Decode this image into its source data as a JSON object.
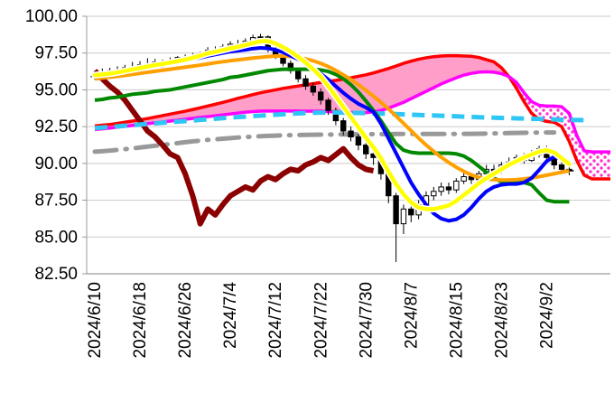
{
  "page": {
    "background": "#FFFFFF"
  },
  "chart_data": {
    "type": "candlestick",
    "subtype": "ichimoku-with-moving-averages",
    "title": "",
    "ylim": [
      82.5,
      100.0
    ],
    "y_tick_step": 2.5,
    "y_tick_labels": [
      "100.00",
      "97.50",
      "95.00",
      "92.50",
      "90.00",
      "87.50",
      "85.00",
      "82.50"
    ],
    "x_tick_labels": [
      "2024/6/10",
      "2024/6/18",
      "2024/6/26",
      "2024/7/4",
      "2024/7/12",
      "2024/7/22",
      "2024/7/30",
      "2024/8/7",
      "2024/8/15",
      "2024/8/23",
      "2024/9/2"
    ],
    "x_tick_bar_indices": [
      0,
      6,
      12,
      18,
      24,
      30,
      36,
      42,
      48,
      54,
      60
    ],
    "grid": true,
    "grid_color": "#C9C9C9",
    "axis_color": "#9A9A9A",
    "label_color": "#000000",
    "dates": [
      "2024/6/10",
      "2024/6/11",
      "2024/6/12",
      "2024/6/13",
      "2024/6/14",
      "2024/6/17",
      "2024/6/18",
      "2024/6/19",
      "2024/6/20",
      "2024/6/21",
      "2024/6/24",
      "2024/6/25",
      "2024/6/26",
      "2024/6/27",
      "2024/6/28",
      "2024/7/1",
      "2024/7/2",
      "2024/7/3",
      "2024/7/4",
      "2024/7/5",
      "2024/7/8",
      "2024/7/9",
      "2024/7/10",
      "2024/7/11",
      "2024/7/12",
      "2024/7/15",
      "2024/7/16",
      "2024/7/17",
      "2024/7/18",
      "2024/7/19",
      "2024/7/22",
      "2024/7/23",
      "2024/7/24",
      "2024/7/25",
      "2024/7/26",
      "2024/7/29",
      "2024/7/30",
      "2024/7/31",
      "2024/8/1",
      "2024/8/2",
      "2024/8/5",
      "2024/8/6",
      "2024/8/7",
      "2024/8/8",
      "2024/8/9",
      "2024/8/12",
      "2024/8/13",
      "2024/8/14",
      "2024/8/15",
      "2024/8/16",
      "2024/8/19",
      "2024/8/20",
      "2024/8/21",
      "2024/8/22",
      "2024/8/23",
      "2024/8/26",
      "2024/8/27",
      "2024/8/28",
      "2024/8/29",
      "2024/8/30",
      "2024/9/2",
      "2024/9/3",
      "2024/9/4",
      "2024/9/5"
    ],
    "candles": {
      "up_fill": "#FFFFFF",
      "down_fill": "#000000",
      "border": "#000000",
      "open": [
        95.9,
        96.1,
        95.95,
        96.3,
        96.15,
        96.5,
        96.4,
        96.7,
        96.6,
        96.9,
        96.8,
        97.0,
        97.2,
        97.1,
        97.3,
        97.5,
        97.7,
        97.6,
        97.9,
        98.1,
        98.0,
        98.3,
        98.55,
        98.6,
        97.75,
        97.3,
        96.8,
        96.3,
        95.75,
        95.25,
        94.85,
        94.3,
        93.6,
        92.9,
        92.2,
        91.8,
        91.25,
        90.65,
        90.4,
        89.3,
        87.8,
        85.9,
        86.9,
        86.5,
        87.2,
        87.8,
        88.1,
        88.4,
        88.2,
        88.8,
        89.1,
        88.9,
        89.3,
        89.6,
        89.5,
        89.9,
        90.1,
        90.4,
        90.2,
        90.6,
        91.0,
        90.4,
        89.9,
        89.6
      ],
      "high": [
        96.3,
        96.45,
        96.5,
        96.6,
        96.7,
        96.9,
        96.95,
        97.15,
        97.1,
        97.05,
        97.2,
        97.3,
        97.4,
        97.5,
        97.6,
        97.9,
        97.95,
        98.1,
        98.3,
        98.4,
        98.5,
        98.75,
        98.8,
        98.7,
        98.0,
        97.5,
        97.0,
        96.5,
        96.0,
        95.5,
        95.1,
        94.45,
        93.8,
        93.1,
        92.5,
        92.0,
        91.5,
        91.2,
        90.55,
        89.45,
        88.0,
        87.2,
        87.4,
        87.5,
        88.1,
        88.4,
        88.7,
        88.7,
        89.0,
        89.4,
        89.3,
        89.5,
        89.9,
        89.9,
        90.1,
        90.4,
        90.6,
        90.7,
        90.9,
        91.2,
        91.2,
        90.5,
        90.1,
        89.9
      ],
      "low": [
        95.7,
        95.85,
        95.8,
        96.0,
        96.05,
        96.2,
        96.3,
        96.4,
        96.45,
        96.5,
        96.65,
        96.8,
        96.9,
        97.0,
        97.1,
        97.3,
        97.45,
        97.5,
        97.7,
        97.85,
        97.9,
        98.1,
        98.3,
        97.55,
        97.1,
        96.6,
        96.1,
        95.5,
        95.0,
        94.6,
        94.0,
        93.3,
        92.6,
        91.9,
        91.5,
        90.9,
        90.3,
        89.9,
        88.9,
        87.3,
        83.3,
        85.2,
        86.0,
        86.2,
        86.9,
        87.5,
        87.8,
        87.9,
        88.0,
        88.6,
        88.6,
        88.7,
        89.1,
        89.2,
        89.3,
        89.7,
        89.9,
        90.0,
        90.1,
        90.4,
        90.2,
        89.6,
        89.3,
        89.2
      ],
      "close": [
        96.1,
        95.95,
        96.3,
        96.15,
        96.5,
        96.4,
        96.7,
        96.6,
        96.9,
        96.8,
        97.0,
        97.2,
        97.1,
        97.3,
        97.5,
        97.7,
        97.6,
        97.9,
        98.1,
        98.0,
        98.3,
        98.55,
        98.6,
        97.75,
        97.3,
        96.8,
        96.3,
        95.75,
        95.25,
        94.85,
        94.3,
        93.6,
        92.9,
        92.2,
        91.8,
        91.25,
        90.65,
        90.4,
        89.3,
        87.8,
        85.9,
        86.9,
        86.5,
        87.2,
        87.8,
        88.1,
        88.4,
        88.2,
        88.8,
        89.1,
        88.9,
        89.3,
        89.6,
        89.5,
        89.9,
        90.1,
        90.4,
        90.2,
        90.6,
        91.0,
        90.4,
        89.9,
        89.6,
        89.5
      ]
    },
    "overlays": [
      {
        "name": "fast-line-yellow",
        "color": "#FFFF00",
        "halo": "#FFFFFF",
        "width": 4.5,
        "style": "solid",
        "start_index": 0,
        "values": [
          96.0,
          96.05,
          96.1,
          96.18,
          96.28,
          96.38,
          96.48,
          96.58,
          96.68,
          96.76,
          96.85,
          96.95,
          97.05,
          97.18,
          97.32,
          97.48,
          97.58,
          97.7,
          97.82,
          97.92,
          98.05,
          98.18,
          98.3,
          98.32,
          98.15,
          97.9,
          97.6,
          97.25,
          96.85,
          96.4,
          95.9,
          95.25,
          94.55,
          93.85,
          93.15,
          92.45,
          91.75,
          91.1,
          90.35,
          89.45,
          88.6,
          87.9,
          87.35,
          87.0,
          86.9,
          86.9,
          87.0,
          87.15,
          87.45,
          87.85,
          88.25,
          88.65,
          89.0,
          89.3,
          89.6,
          89.9,
          90.15,
          90.4,
          90.6,
          90.8,
          90.9,
          90.75,
          90.35,
          89.95
        ]
      },
      {
        "name": "ma-blue",
        "color": "#0000FF",
        "width": 4,
        "style": "solid",
        "start_index": 0,
        "values": [
          95.9,
          95.95,
          96.0,
          96.08,
          96.18,
          96.28,
          96.38,
          96.48,
          96.58,
          96.68,
          96.78,
          96.88,
          96.98,
          97.08,
          97.18,
          97.3,
          97.4,
          97.5,
          97.6,
          97.66,
          97.72,
          97.8,
          97.85,
          97.82,
          97.72,
          97.55,
          97.32,
          97.08,
          96.8,
          96.48,
          96.1,
          95.7,
          95.25,
          94.8,
          94.4,
          94.05,
          93.8,
          93.5,
          92.7,
          91.7,
          90.7,
          89.7,
          88.7,
          87.9,
          87.2,
          86.6,
          86.25,
          86.1,
          86.2,
          86.5,
          87.0,
          87.6,
          88.1,
          88.4,
          88.55,
          88.6,
          88.6,
          88.7,
          89.0,
          89.55,
          90.15,
          90.45,
          90.3,
          89.9
        ]
      },
      {
        "name": "ma-orange",
        "color": "#FFA000",
        "width": 4,
        "style": "solid",
        "start_index": 0,
        "values": [
          95.75,
          95.8,
          95.86,
          95.92,
          95.98,
          96.05,
          96.12,
          96.19,
          96.26,
          96.33,
          96.4,
          96.47,
          96.54,
          96.61,
          96.68,
          96.76,
          96.84,
          96.91,
          96.98,
          97.04,
          97.1,
          97.16,
          97.21,
          97.26,
          97.3,
          97.3,
          97.27,
          97.2,
          97.1,
          96.97,
          96.8,
          96.58,
          96.32,
          96.02,
          95.7,
          95.35,
          94.97,
          94.57,
          94.15,
          93.7,
          93.22,
          92.72,
          92.22,
          91.72,
          91.25,
          90.82,
          90.42,
          90.06,
          89.74,
          89.46,
          89.22,
          89.05,
          88.95,
          88.9,
          88.87,
          88.87,
          88.9,
          88.95,
          89.02,
          89.1,
          89.2,
          89.3,
          89.4,
          89.5
        ]
      },
      {
        "name": "base-line-green",
        "color": "#008800",
        "width": 4,
        "style": "solid",
        "start_index": 0,
        "values": [
          94.3,
          94.35,
          94.45,
          94.5,
          94.6,
          94.7,
          94.75,
          94.8,
          94.9,
          94.95,
          95.0,
          95.1,
          95.2,
          95.3,
          95.4,
          95.5,
          95.6,
          95.7,
          95.85,
          95.9,
          96.0,
          96.1,
          96.2,
          96.3,
          96.35,
          96.4,
          96.4,
          96.4,
          96.4,
          96.4,
          96.35,
          96.25,
          96.05,
          95.75,
          95.35,
          94.85,
          94.25,
          93.6,
          92.9,
          92.1,
          91.35,
          90.9,
          90.75,
          90.7,
          90.7,
          90.7,
          90.7,
          90.7,
          90.65,
          90.5,
          90.2,
          89.8,
          89.4,
          89.0,
          88.75,
          88.7,
          88.7,
          88.7,
          88.55,
          88.0,
          87.5,
          87.4,
          87.4,
          87.4
        ]
      },
      {
        "name": "lagging-span-darkred",
        "color": "#8B0000",
        "width": 6,
        "style": "solid",
        "start_index": 0,
        "values": [
          96.3,
          95.75,
          95.25,
          94.85,
          94.3,
          93.6,
          92.9,
          92.2,
          91.8,
          91.25,
          90.65,
          90.4,
          89.3,
          87.8,
          85.9,
          86.9,
          86.5,
          87.2,
          87.8,
          88.1,
          88.4,
          88.2,
          88.8,
          89.1,
          88.9,
          89.3,
          89.6,
          89.5,
          89.9,
          90.1,
          90.4,
          90.2,
          90.6,
          91.0,
          90.4,
          89.9,
          89.6,
          89.5
        ]
      },
      {
        "name": "ma-cyan-dashed",
        "color": "#2EC6F5",
        "width": 5,
        "style": "dashed",
        "start_index": 0,
        "values": [
          92.4,
          92.44,
          92.48,
          92.52,
          92.56,
          92.6,
          92.64,
          92.68,
          92.72,
          92.76,
          92.8,
          92.84,
          92.88,
          92.92,
          92.96,
          93.0,
          93.04,
          93.08,
          93.12,
          93.15,
          93.18,
          93.21,
          93.25,
          93.28,
          93.31,
          93.34,
          93.37,
          93.4,
          93.42,
          93.44,
          93.45,
          93.46,
          93.46,
          93.45,
          93.44,
          93.43,
          93.42,
          93.4,
          93.39,
          93.37,
          93.35,
          93.33,
          93.31,
          93.29,
          93.27,
          93.26,
          93.24,
          93.22,
          93.2,
          93.18,
          93.16,
          93.14,
          93.12,
          93.11,
          93.09,
          93.08,
          93.06,
          93.05,
          93.03,
          93.02,
          93.0,
          92.99,
          92.97,
          92.96,
          92.95,
          92.94
        ]
      },
      {
        "name": "ma-gray-dashdot",
        "color": "#999999",
        "width": 5,
        "style": "dashdot",
        "start_index": 0,
        "values": [
          90.8,
          90.83,
          90.87,
          90.92,
          90.97,
          91.02,
          91.08,
          91.14,
          91.2,
          91.26,
          91.32,
          91.38,
          91.44,
          91.5,
          91.55,
          91.6,
          91.64,
          91.68,
          91.72,
          91.76,
          91.79,
          91.82,
          91.85,
          91.87,
          91.89,
          91.91,
          91.92,
          91.93,
          91.94,
          91.95,
          91.96,
          91.96,
          91.97,
          91.97,
          91.98,
          91.98,
          91.98,
          91.99,
          91.99,
          91.99,
          92.0,
          92.0,
          92.0,
          92.0,
          92.0,
          92.0,
          92.0,
          92.0,
          92.0,
          92.01,
          92.01,
          92.02,
          92.03,
          92.04,
          92.05,
          92.06,
          92.07,
          92.08,
          92.09,
          92.1,
          92.1,
          92.1
        ]
      }
    ],
    "cloud": {
      "bull_fill": "#FF9EC8",
      "bear_dot_color": "#FF35CF",
      "cross_index": 55,
      "future_bars": 5,
      "senkou_a": {
        "name": "senkou-span-a-red",
        "color": "#FF0000",
        "width": 3.5,
        "values": [
          92.55,
          92.6,
          92.65,
          92.72,
          92.8,
          92.88,
          92.96,
          93.05,
          93.15,
          93.25,
          93.35,
          93.45,
          93.55,
          93.66,
          93.78,
          93.9,
          94.02,
          94.15,
          94.28,
          94.42,
          94.55,
          94.68,
          94.8,
          94.9,
          95.0,
          95.1,
          95.18,
          95.26,
          95.34,
          95.42,
          95.5,
          95.57,
          95.64,
          95.72,
          95.82,
          95.92,
          96.02,
          96.15,
          96.3,
          96.45,
          96.62,
          96.8,
          96.95,
          97.08,
          97.18,
          97.25,
          97.3,
          97.32,
          97.32,
          97.3,
          97.28,
          97.2,
          97.05,
          96.9,
          96.5,
          95.9,
          95.1,
          94.2,
          93.4,
          93.0,
          92.85,
          92.8,
          92.5,
          91.5,
          90.2,
          89.2,
          88.95,
          88.95,
          88.95
        ]
      },
      "senkou_b": {
        "name": "senkou-span-b-magenta",
        "color": "#FF00FF",
        "width": 3.5,
        "values": [
          92.3,
          92.35,
          92.4,
          92.46,
          92.52,
          92.58,
          92.64,
          92.7,
          92.76,
          92.82,
          92.88,
          92.94,
          93.0,
          93.06,
          93.12,
          93.18,
          93.24,
          93.3,
          93.36,
          93.42,
          93.48,
          93.52,
          93.55,
          93.56,
          93.56,
          93.56,
          93.56,
          93.55,
          93.55,
          93.55,
          93.55,
          93.52,
          93.5,
          93.48,
          93.46,
          93.45,
          93.45,
          93.5,
          93.6,
          93.75,
          93.95,
          94.15,
          94.4,
          94.65,
          94.9,
          95.15,
          95.4,
          95.62,
          95.82,
          96.0,
          96.12,
          96.2,
          96.22,
          96.2,
          96.1,
          95.9,
          95.5,
          94.8,
          94.2,
          93.95,
          93.9,
          93.9,
          93.85,
          93.4,
          91.9,
          90.85,
          90.78,
          90.78,
          90.78
        ]
      }
    },
    "layout": {
      "plot_left": 96,
      "plot_top": 18,
      "plot_right": 676,
      "plot_bottom": 303,
      "first_bar_x": 105,
      "bar_step": 8.34,
      "candle_width": 5.4,
      "y_label_font_px": 19,
      "x_label_font_px": 19
    }
  }
}
